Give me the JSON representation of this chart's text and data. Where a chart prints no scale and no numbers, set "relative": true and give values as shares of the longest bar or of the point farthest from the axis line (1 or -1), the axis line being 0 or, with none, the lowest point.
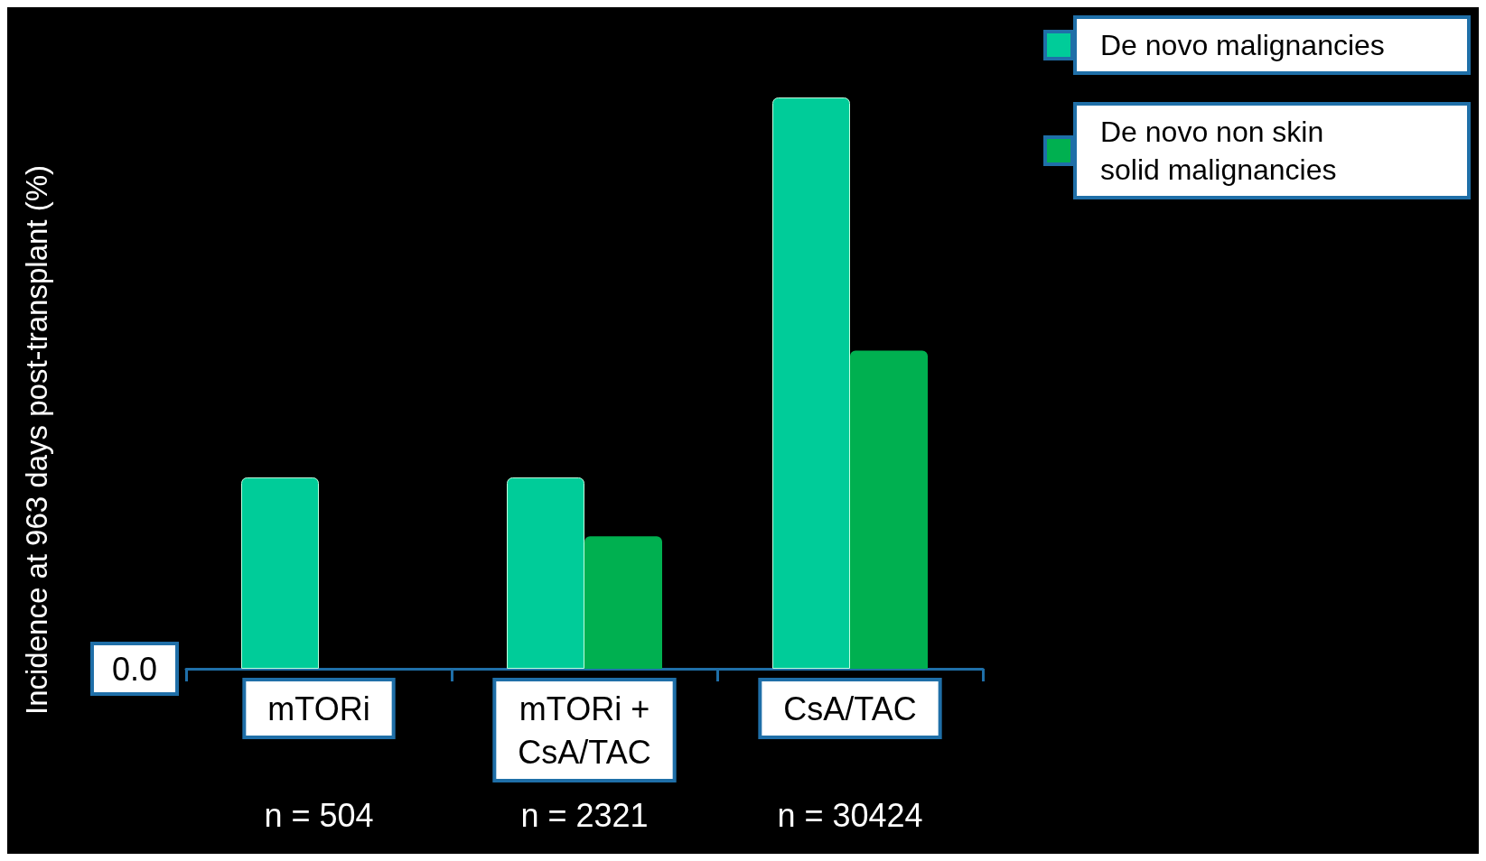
{
  "chart_data": {
    "type": "bar",
    "relative": true,
    "ylabel": "Incidence at 963 days post-transplant (%)",
    "categories": [
      "mTORi",
      "mTORi +\nCsA/TAC",
      "CsA/TAC"
    ],
    "series": [
      {
        "name": "De novo malignancies",
        "color": "#00cc99",
        "values": [
          0.335,
          0.335,
          1
        ]
      },
      {
        "name": "De novo non skin\nsolid malignancies",
        "color": "#00b050",
        "values": [
          0,
          0.232,
          0.557
        ]
      }
    ],
    "annotations": [
      "0.0",
      "n = 504",
      "n = 2321",
      "n = 30424"
    ],
    "legend": "top right"
  }
}
